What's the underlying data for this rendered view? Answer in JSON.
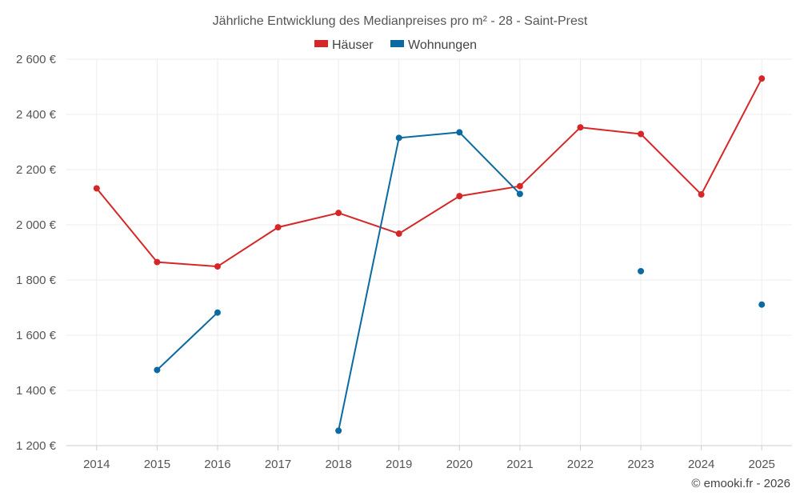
{
  "chart_data": {
    "type": "line",
    "title": "Jährliche Entwicklung des Medianpreises pro m² - 28 - Saint-Prest",
    "xlabel": "",
    "ylabel": "",
    "categories": [
      "2014",
      "2015",
      "2016",
      "2017",
      "2018",
      "2019",
      "2020",
      "2021",
      "2022",
      "2023",
      "2024",
      "2025"
    ],
    "ylim": [
      1200,
      2600
    ],
    "yticks": [
      1200,
      1400,
      1600,
      1800,
      2000,
      2200,
      2400,
      2600
    ],
    "ytick_labels": [
      "1 200 €",
      "1 400 €",
      "1 600 €",
      "1 800 €",
      "2 000 €",
      "2 200 €",
      "2 400 €",
      "2 600 €"
    ],
    "grid": true,
    "legend_position": "top-center",
    "series": [
      {
        "name": "Häuser",
        "color": "#d62728",
        "values": [
          2132,
          1865,
          1849,
          1991,
          2043,
          1968,
          2104,
          2140,
          2353,
          2329,
          2110,
          2530
        ]
      },
      {
        "name": "Wohnungen",
        "color": "#0b6aa2",
        "values": [
          null,
          1474,
          1682,
          null,
          1254,
          2315,
          2335,
          2112,
          null,
          1832,
          null,
          1711
        ]
      }
    ]
  },
  "credit": "© emooki.fr - 2026"
}
